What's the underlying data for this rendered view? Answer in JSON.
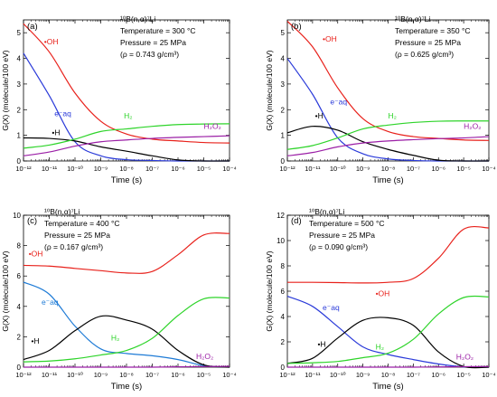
{
  "chart_data": [
    {
      "type": "line",
      "panel_label": "(a)",
      "annotations": [
        "¹⁰B(n,α)⁷Li",
        "Temperature = 300 °C",
        "Pressure = 25 MPa",
        "(ρ = 0.743 g/cm³)"
      ],
      "xlabel": "Time (s)",
      "ylabel": "G(X) (molecule/100 eV)",
      "x_scale": "log",
      "xlim": [
        1e-12,
        0.0001
      ],
      "ylim": [
        0,
        5.5
      ],
      "x_ticks": [
        "10⁻¹²",
        "10⁻¹¹",
        "10⁻¹⁰",
        "10⁻⁹",
        "10⁻⁸",
        "10⁻⁷",
        "10⁻⁶",
        "10⁻⁵",
        "10⁻⁴"
      ],
      "y_ticks": [
        "0",
        "1",
        "2",
        "3",
        "4",
        "5"
      ],
      "x": [
        1e-12,
        1e-11,
        1e-10,
        1e-09,
        1e-08,
        1e-07,
        1e-06,
        1e-05,
        0.0001
      ],
      "series": [
        {
          "name": "•OH",
          "color": "#e8211b",
          "values": [
            5.35,
            4.25,
            2.65,
            1.55,
            1.05,
            0.85,
            0.78,
            0.72,
            0.7
          ]
        },
        {
          "name": "e⁻aq",
          "color": "#2a3ad9",
          "values": [
            4.2,
            2.55,
            0.75,
            0.2,
            0.05,
            0.02,
            0,
            0,
            0
          ]
        },
        {
          "name": "•H",
          "color": "#000000",
          "values": [
            0.9,
            0.88,
            0.78,
            0.55,
            0.38,
            0.2,
            0.04,
            0,
            0
          ]
        },
        {
          "name": "H₂",
          "color": "#2ed42a",
          "values": [
            0.5,
            0.62,
            0.85,
            1.15,
            1.25,
            1.35,
            1.42,
            1.44,
            1.45
          ]
        },
        {
          "name": "H₂O₂",
          "color": "#9b1fa6",
          "values": [
            0.2,
            0.35,
            0.58,
            0.75,
            0.82,
            0.88,
            0.92,
            0.95,
            0.98
          ]
        }
      ]
    },
    {
      "type": "line",
      "panel_label": "(b)",
      "annotations": [
        "¹⁰B(n,α)⁷Li",
        "Temperature = 350 °C",
        "Pressure = 25 MPa",
        "(ρ = 0.625 g/cm³)"
      ],
      "xlabel": "Time (s)",
      "ylabel": "G(X) (molecule/100 eV)",
      "x_scale": "log",
      "xlim": [
        1e-12,
        0.0001
      ],
      "ylim": [
        0,
        5.5
      ],
      "x_ticks": [
        "10⁻¹²",
        "10⁻¹¹",
        "10⁻¹⁰",
        "10⁻⁹",
        "10⁻⁸",
        "10⁻⁷",
        "10⁻⁶",
        "10⁻⁵",
        "10⁻⁴"
      ],
      "y_ticks": [
        "0",
        "1",
        "2",
        "3",
        "4",
        "5"
      ],
      "x": [
        1e-12,
        1e-11,
        1e-10,
        1e-09,
        1e-08,
        1e-07,
        1e-06,
        1e-05,
        0.0001
      ],
      "series": [
        {
          "name": "•OH",
          "color": "#e8211b",
          "values": [
            5.45,
            4.45,
            2.85,
            1.65,
            1.15,
            0.95,
            0.88,
            0.82,
            0.8
          ]
        },
        {
          "name": "e⁻aq",
          "color": "#2a3ad9",
          "values": [
            4.0,
            2.6,
            0.9,
            0.28,
            0.08,
            0.02,
            0,
            0,
            0
          ]
        },
        {
          "name": "•H",
          "color": "#000000",
          "values": [
            1.1,
            1.35,
            1.2,
            0.75,
            0.45,
            0.22,
            0.03,
            0,
            0
          ]
        },
        {
          "name": "H₂",
          "color": "#2ed42a",
          "values": [
            0.45,
            0.6,
            0.9,
            1.25,
            1.4,
            1.5,
            1.55,
            1.56,
            1.56
          ]
        },
        {
          "name": "H₂O₂",
          "color": "#9b1fa6",
          "values": [
            0.2,
            0.33,
            0.55,
            0.7,
            0.78,
            0.83,
            0.87,
            0.9,
            0.95
          ]
        }
      ]
    },
    {
      "type": "line",
      "panel_label": "(c)",
      "annotations": [
        "¹⁰B(n,α)⁷Li",
        "Temperature = 400 °C",
        "Pressure = 25 MPa",
        "(ρ = 0.167 g/cm³)"
      ],
      "xlabel": "Time (s)",
      "ylabel": "G(X) (molecule/100 eV)",
      "x_scale": "log",
      "xlim": [
        1e-12,
        0.0001
      ],
      "ylim": [
        0,
        10
      ],
      "x_ticks": [
        "10⁻¹²",
        "10⁻¹¹",
        "10⁻¹⁰",
        "10⁻⁹",
        "10⁻⁸",
        "10⁻⁷",
        "10⁻⁶",
        "10⁻⁵",
        "10⁻⁴"
      ],
      "y_ticks": [
        "0",
        "2",
        "4",
        "6",
        "8",
        "10"
      ],
      "x": [
        1e-12,
        1e-11,
        1e-10,
        1e-09,
        1e-08,
        1e-07,
        1e-06,
        1e-05,
        0.0001
      ],
      "series": [
        {
          "name": "•OH",
          "color": "#e8211b",
          "values": [
            6.7,
            6.65,
            6.5,
            6.35,
            6.2,
            6.3,
            7.4,
            8.7,
            8.8
          ]
        },
        {
          "name": "e⁻aq",
          "color": "#1e7bd6",
          "values": [
            5.6,
            4.8,
            2.7,
            1.2,
            0.9,
            0.75,
            0.5,
            0.1,
            0
          ]
        },
        {
          "name": "•H",
          "color": "#000000",
          "values": [
            0.5,
            1.1,
            2.4,
            3.35,
            3.1,
            2.5,
            1.1,
            0.15,
            0
          ]
        },
        {
          "name": "H₂",
          "color": "#2ed42a",
          "values": [
            0.35,
            0.4,
            0.55,
            0.8,
            1.1,
            1.9,
            3.4,
            4.5,
            4.55
          ]
        },
        {
          "name": "H₂O₂",
          "color": "#9b1fa6",
          "values": [
            0,
            0,
            0,
            0,
            0,
            0,
            0.02,
            0.04,
            0.05
          ]
        }
      ]
    },
    {
      "type": "line",
      "panel_label": "(d)",
      "annotations": [
        "¹⁰B(n,α)⁷Li",
        "Temperature = 500 °C",
        "Pressure = 25 MPa",
        "(ρ = 0.090 g/cm³)"
      ],
      "xlabel": "Time (s)",
      "ylabel": "G(X) (molecule/100 eV)",
      "x_scale": "log",
      "xlim": [
        1e-12,
        0.0001
      ],
      "ylim": [
        0,
        12
      ],
      "x_ticks": [
        "10⁻¹²",
        "10⁻¹¹",
        "10⁻¹⁰",
        "10⁻⁹",
        "10⁻⁸",
        "10⁻⁷",
        "10⁻⁶",
        "10⁻⁵",
        "10⁻⁴"
      ],
      "y_ticks": [
        "0",
        "2",
        "4",
        "6",
        "8",
        "10",
        "12"
      ],
      "x": [
        1e-12,
        1e-11,
        1e-10,
        1e-09,
        1e-08,
        1e-07,
        1e-06,
        1e-05,
        0.0001
      ],
      "series": [
        {
          "name": "•OH",
          "color": "#e8211b",
          "values": [
            6.7,
            6.7,
            6.68,
            6.65,
            6.7,
            7.0,
            8.6,
            10.9,
            11.0
          ]
        },
        {
          "name": "e⁻aq",
          "color": "#2a3ad9",
          "values": [
            5.6,
            4.8,
            3.2,
            1.6,
            1.0,
            0.6,
            0.25,
            0.02,
            0
          ]
        },
        {
          "name": "•H",
          "color": "#000000",
          "values": [
            0.3,
            0.7,
            2.3,
            3.7,
            3.9,
            3.3,
            1.2,
            0.05,
            0
          ]
        },
        {
          "name": "H₂",
          "color": "#2ed42a",
          "values": [
            0.3,
            0.35,
            0.45,
            0.75,
            1.1,
            2.2,
            4.2,
            5.5,
            5.55
          ]
        },
        {
          "name": "H₂O₂",
          "color": "#9b1fa6",
          "values": [
            0,
            0,
            0,
            0,
            0,
            0,
            0.02,
            0.04,
            0.05
          ]
        }
      ]
    }
  ]
}
